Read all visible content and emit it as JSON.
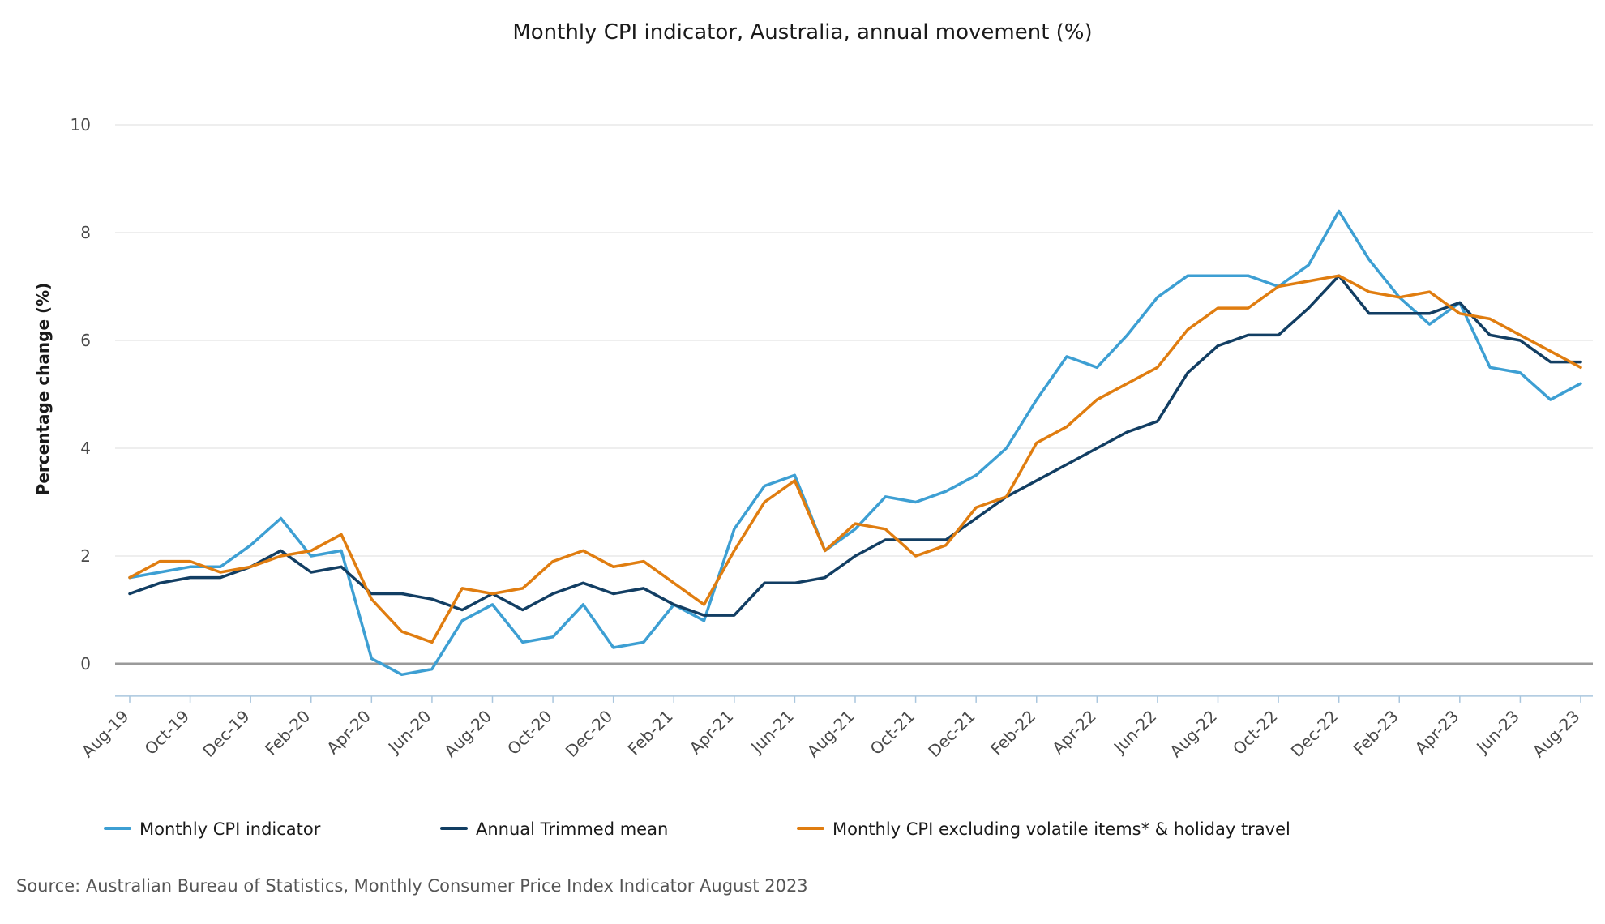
{
  "chart_data": {
    "type": "line",
    "title": "Monthly CPI indicator, Australia, annual movement (%)",
    "ylabel": "Percentage change (%)",
    "xlabel": "",
    "ylim": [
      -0.6,
      10
    ],
    "yticks": [
      0,
      2,
      4,
      6,
      8,
      10
    ],
    "grid": true,
    "legend_position": "bottom",
    "x": [
      "Aug-19",
      "Sep-19",
      "Oct-19",
      "Nov-19",
      "Dec-19",
      "Jan-20",
      "Feb-20",
      "Mar-20",
      "Apr-20",
      "May-20",
      "Jun-20",
      "Jul-20",
      "Aug-20",
      "Sep-20",
      "Oct-20",
      "Nov-20",
      "Dec-20",
      "Jan-21",
      "Feb-21",
      "Mar-21",
      "Apr-21",
      "May-21",
      "Jun-21",
      "Jul-21",
      "Aug-21",
      "Sep-21",
      "Oct-21",
      "Nov-21",
      "Dec-21",
      "Jan-22",
      "Feb-22",
      "Mar-22",
      "Apr-22",
      "May-22",
      "Jun-22",
      "Jul-22",
      "Aug-22",
      "Sep-22",
      "Oct-22",
      "Nov-22",
      "Dec-22",
      "Jan-23",
      "Feb-23",
      "Mar-23",
      "Apr-23",
      "May-23",
      "Jun-23",
      "Jul-23",
      "Aug-23"
    ],
    "x_tick_labels": [
      "Aug-19",
      "Oct-19",
      "Dec-19",
      "Feb-20",
      "Apr-20",
      "Jun-20",
      "Aug-20",
      "Oct-20",
      "Dec-20",
      "Feb-21",
      "Apr-21",
      "Jun-21",
      "Aug-21",
      "Oct-21",
      "Dec-21",
      "Feb-22",
      "Apr-22",
      "Jun-22",
      "Aug-22",
      "Oct-22",
      "Dec-22",
      "Feb-23",
      "Apr-23",
      "Jun-23",
      "Aug-23"
    ],
    "series": [
      {
        "name": "Monthly CPI indicator",
        "color": "#3d9fd3",
        "values": [
          1.6,
          1.7,
          1.8,
          1.8,
          2.2,
          2.7,
          2.0,
          2.1,
          0.1,
          -0.2,
          -0.1,
          0.8,
          1.1,
          0.4,
          0.5,
          1.1,
          0.3,
          0.4,
          1.1,
          0.8,
          2.5,
          3.3,
          3.5,
          2.1,
          2.5,
          3.1,
          3.0,
          3.2,
          3.5,
          4.0,
          4.9,
          5.7,
          5.5,
          6.1,
          6.8,
          7.2,
          7.2,
          7.2,
          7.0,
          7.4,
          8.4,
          7.5,
          6.8,
          6.3,
          6.7,
          5.5,
          5.4,
          4.9,
          5.2
        ]
      },
      {
        "name": "Annual Trimmed mean",
        "color": "#123e63",
        "values": [
          1.3,
          1.5,
          1.6,
          1.6,
          1.8,
          2.1,
          1.7,
          1.8,
          1.3,
          1.3,
          1.2,
          1.0,
          1.3,
          1.0,
          1.3,
          1.5,
          1.3,
          1.4,
          1.1,
          0.9,
          0.9,
          1.5,
          1.5,
          1.6,
          2.0,
          2.3,
          2.3,
          2.3,
          2.7,
          3.1,
          3.4,
          3.7,
          4.0,
          4.3,
          4.5,
          5.4,
          5.9,
          6.1,
          6.1,
          6.6,
          7.2,
          6.5,
          6.5,
          6.5,
          6.7,
          6.1,
          6.0,
          5.6,
          5.6
        ]
      },
      {
        "name": "Monthly CPI excluding volatile items* & holiday travel",
        "color": "#e07d10",
        "values": [
          1.6,
          1.9,
          1.9,
          1.7,
          1.8,
          2.0,
          2.1,
          2.4,
          1.2,
          0.6,
          0.4,
          1.4,
          1.3,
          1.4,
          1.9,
          2.1,
          1.8,
          1.9,
          1.5,
          1.1,
          2.1,
          3.0,
          3.4,
          2.1,
          2.6,
          2.5,
          2.0,
          2.2,
          2.9,
          3.1,
          4.1,
          4.4,
          4.9,
          5.2,
          5.5,
          6.2,
          6.6,
          6.6,
          7.0,
          7.1,
          7.2,
          6.9,
          6.8,
          6.9,
          6.5,
          6.4,
          6.1,
          5.8,
          5.5
        ]
      }
    ]
  },
  "source": "Source: Australian Bureau of Statistics, Monthly Consumer Price Index Indicator August 2023"
}
